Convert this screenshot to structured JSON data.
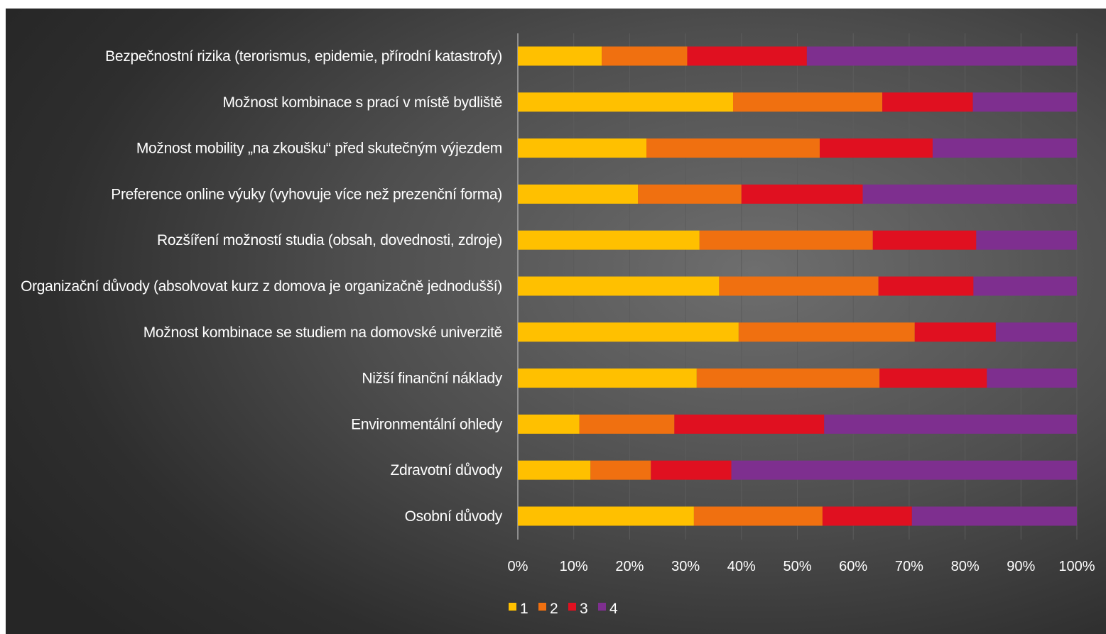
{
  "chart_data": {
    "type": "bar",
    "orientation": "horizontal",
    "stacked": "100%",
    "title": "",
    "xlabel": "",
    "ylabel": "",
    "xlim": [
      0,
      100
    ],
    "x_ticks": [
      "0%",
      "10%",
      "20%",
      "30%",
      "40%",
      "50%",
      "60%",
      "70%",
      "80%",
      "90%",
      "100%"
    ],
    "grid": "vertical",
    "legend_position": "bottom",
    "categories": [
      "Bezpečnostní rizika (terorismus, epidemie, přírodní katastrofy)",
      "Možnost kombinace s prací v místě bydliště",
      "Možnost mobility „na zkoušku“ před skutečným výjezdem",
      "Preference online výuky (vyhovuje více než prezenční forma)",
      "Rozšíření možností studia (obsah, dovednosti, zdroje)",
      "Organizační důvody (absolvovat kurz z domova je organizačně jednodušší)",
      "Možnost kombinace se studiem na domovské univerzitě",
      "Nižší finanční náklady",
      "Environmentální ohledy",
      "Zdravotní důvody",
      "Osobní důvody"
    ],
    "series": [
      {
        "name": "1",
        "color": "#FFC000",
        "values": [
          15,
          38.5,
          23,
          21.5,
          32.5,
          36,
          39.5,
          32,
          11,
          13,
          31.5
        ]
      },
      {
        "name": "2",
        "color": "#F07010",
        "values": [
          15.3,
          26.7,
          31,
          18.5,
          31,
          28.5,
          31.5,
          32.7,
          17,
          10.8,
          23
        ]
      },
      {
        "name": "3",
        "color": "#E01020",
        "values": [
          21.4,
          16.2,
          20.2,
          21.7,
          18.5,
          17,
          14.5,
          19.2,
          26.8,
          14.4,
          16
        ]
      },
      {
        "name": "4",
        "color": "#7E2F8F",
        "values": [
          48.3,
          18.6,
          25.8,
          38.3,
          18,
          18.5,
          14.5,
          16.1,
          45.2,
          61.8,
          29.5
        ]
      }
    ]
  }
}
